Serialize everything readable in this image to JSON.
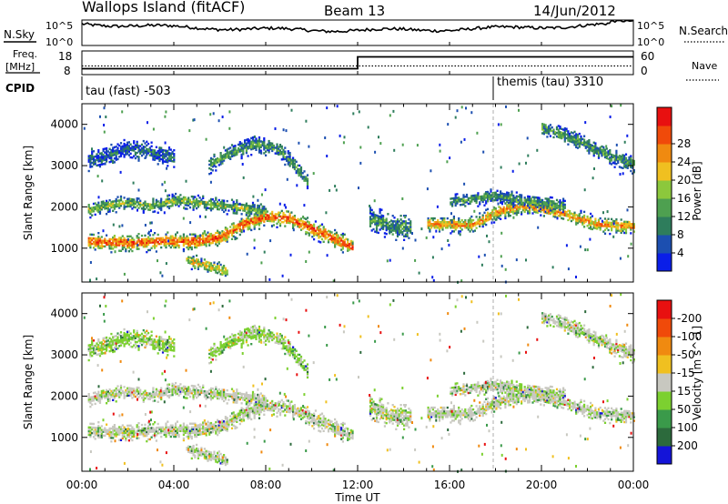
{
  "header": {
    "title": "Wallops Island (fitACF)",
    "beam": "Beam 13",
    "date": "14/Jun/2012"
  },
  "noise_panel": {
    "left_label": "N.Sky",
    "right_label": "N.Search",
    "left_ticks": [
      "10^5",
      "10^0"
    ],
    "right_ticks": [
      "10^5",
      "10^0"
    ]
  },
  "freq_panel": {
    "left_label_line1": "Freq.",
    "left_label_line2": "[MHz]",
    "right_label": "Nave",
    "left_ticks": [
      "18",
      "8"
    ],
    "right_ticks": [
      "60",
      "0"
    ]
  },
  "cpid_panel": {
    "label": "CPID",
    "segments": [
      {
        "text": "tau (fast) -503",
        "start_hour": 0
      },
      {
        "text": "themis (tau) 3310",
        "start_hour": 18
      }
    ]
  },
  "axes": {
    "ylabel": "Slant Range [km]",
    "xlabel": "Time UT",
    "x_ticks": [
      "00:00",
      "04:00",
      "08:00",
      "12:00",
      "16:00",
      "20:00",
      "00:00"
    ],
    "y_ticks": [
      "1000",
      "2000",
      "3000",
      "4000"
    ],
    "y_range": [
      180,
      4500
    ],
    "x_range_hours": [
      0,
      24
    ]
  },
  "colorbars": {
    "power": {
      "label": "Power [dB]",
      "ticks": [
        "4",
        "8",
        "12",
        "16",
        "20",
        "24",
        "28"
      ],
      "colors": [
        "#0a1ee8",
        "#1c4fb0",
        "#2e7d5c",
        "#4ea050",
        "#8cc83c",
        "#f0c020",
        "#f08a10",
        "#f04a0a",
        "#e81010"
      ]
    },
    "velocity": {
      "label": "Velocity [m s^-1]",
      "ticks": [
        "200",
        "100",
        "50",
        "15",
        "-15",
        "-50",
        "-100",
        "-200"
      ],
      "colors": [
        "#1414d8",
        "#2c6a3c",
        "#3a9a4a",
        "#7cd030",
        "#c8c8c0",
        "#f0c020",
        "#f08a10",
        "#f04a0a",
        "#e81010"
      ]
    }
  },
  "chart_data": {
    "type": "heatmap",
    "title": "Wallops Island (fitACF)",
    "xlabel": "Time UT",
    "ylabel": "Slant Range [km]",
    "xlim": [
      0,
      24
    ],
    "ylim": [
      180,
      4500
    ],
    "freq_MHz": [
      {
        "t": 0,
        "f": 10.5
      },
      {
        "t": 12,
        "f": 10.5
      },
      {
        "t": 12,
        "f": 15.5
      },
      {
        "t": 24,
        "f": 15.5
      }
    ],
    "nave_approx": 22,
    "bands": [
      {
        "name": "main-lower",
        "points": [
          [
            0.2,
            1150
          ],
          [
            2,
            1100
          ],
          [
            3.5,
            1150
          ],
          [
            5,
            1150
          ],
          [
            6,
            1250
          ],
          [
            7,
            1550
          ],
          [
            8,
            1750
          ],
          [
            9,
            1700
          ],
          [
            10,
            1450
          ],
          [
            11,
            1200
          ],
          [
            11.8,
            1000
          ]
        ],
        "half_width": 150,
        "intensity": 0.8
      },
      {
        "name": "main-upper",
        "points": [
          [
            0.2,
            1900
          ],
          [
            1,
            2000
          ],
          [
            2,
            2100
          ],
          [
            3,
            2000
          ],
          [
            4.2,
            2150
          ],
          [
            5.5,
            2050
          ],
          [
            7,
            1950
          ],
          [
            8,
            1850
          ]
        ],
        "half_width": 120,
        "intensity": 0.45
      },
      {
        "name": "high-arc",
        "points": [
          [
            5.5,
            3000
          ],
          [
            6.5,
            3300
          ],
          [
            7.5,
            3500
          ],
          [
            8.5,
            3400
          ],
          [
            9.2,
            3000
          ],
          [
            9.8,
            2600
          ]
        ],
        "half_width": 140,
        "intensity": 0.35
      },
      {
        "name": "early-3000",
        "points": [
          [
            0.2,
            3100
          ],
          [
            1,
            3200
          ],
          [
            2,
            3400
          ],
          [
            3,
            3300
          ],
          [
            4,
            3200
          ]
        ],
        "half_width": 160,
        "intensity": 0.2
      },
      {
        "name": "late-evening",
        "points": [
          [
            15,
            1550
          ],
          [
            17,
            1550
          ],
          [
            18.2,
            1900
          ],
          [
            19.5,
            2000
          ],
          [
            21,
            1800
          ],
          [
            22.5,
            1550
          ],
          [
            24,
            1500
          ]
        ],
        "half_width": 130,
        "intensity": 0.7
      },
      {
        "name": "late-upper",
        "points": [
          [
            16,
            2100
          ],
          [
            18,
            2250
          ],
          [
            19.5,
            2100
          ],
          [
            21,
            2000
          ]
        ],
        "half_width": 120,
        "intensity": 0.35
      },
      {
        "name": "late-high",
        "points": [
          [
            20,
            3900
          ],
          [
            21.5,
            3600
          ],
          [
            23,
            3200
          ],
          [
            24,
            3000
          ]
        ],
        "half_width": 140,
        "intensity": 0.35
      },
      {
        "name": "mid-scatter",
        "points": [
          [
            12.5,
            1700
          ],
          [
            13.5,
            1500
          ],
          [
            14.3,
            1500
          ]
        ],
        "half_width": 200,
        "intensity": 0.35
      },
      {
        "name": "low-6h",
        "points": [
          [
            4.5,
            700
          ],
          [
            5.5,
            550
          ],
          [
            6.3,
            400
          ]
        ],
        "half_width": 120,
        "intensity": 0.6
      }
    ]
  }
}
